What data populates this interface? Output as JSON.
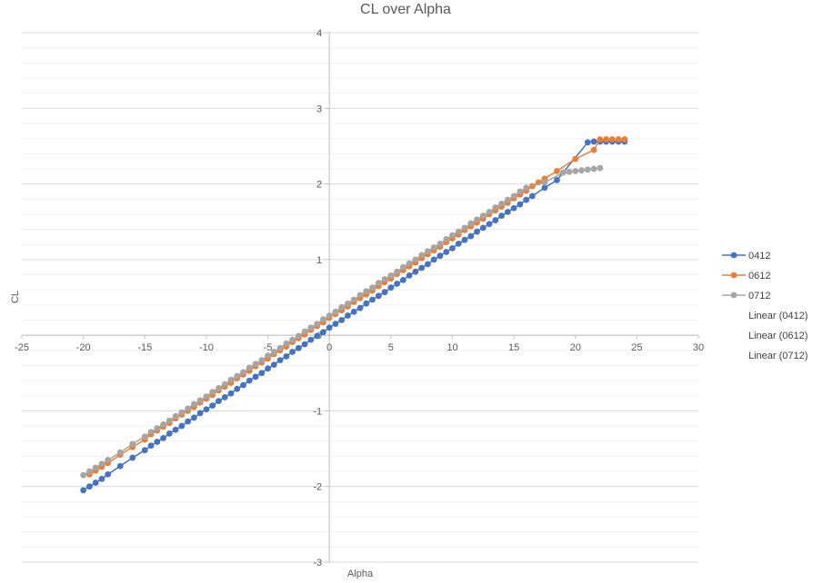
{
  "chart_data": {
    "type": "scatter",
    "title": "CL over Alpha",
    "xlabel": "Alpha",
    "ylabel": "CL",
    "xlim": [
      -25,
      30
    ],
    "ylim": [
      -3,
      4
    ],
    "x_major_step": 5,
    "y_major_step": 1,
    "y_minor_step": 0.2,
    "x_ticks": [
      "-25",
      "-20",
      "-15",
      "-10",
      "-5",
      "0",
      "5",
      "10",
      "15",
      "20",
      "25",
      "30"
    ],
    "y_ticks": [
      "-3",
      "-2",
      "-1",
      "0",
      "1",
      "2",
      "3",
      "4"
    ],
    "grid": true,
    "legend_position": "right",
    "legend": [
      "0412",
      "0612",
      "0712",
      "Linear (0412)",
      "Linear (0612)",
      "Linear (0712)"
    ],
    "series": [
      {
        "name": "0412",
        "color": "#4472C4",
        "x": [
          -20.0,
          -19.5,
          -19.0,
          -18.5,
          -18.0,
          -17.0,
          -16.0,
          -15.0,
          -14.5,
          -14.0,
          -13.5,
          -13.0,
          -12.5,
          -12.0,
          -11.5,
          -11.0,
          -10.5,
          -10.0,
          -9.5,
          -9.0,
          -8.5,
          -8.0,
          -7.5,
          -7.0,
          -6.5,
          -6.0,
          -5.5,
          -5.0,
          -4.5,
          -4.0,
          -3.5,
          -3.0,
          -2.5,
          -2.0,
          -1.5,
          -1.0,
          -0.5,
          0.0,
          0.5,
          1.0,
          1.5,
          2.0,
          2.5,
          3.0,
          3.5,
          4.0,
          4.5,
          5.0,
          5.5,
          6.0,
          6.5,
          7.0,
          7.5,
          8.0,
          8.5,
          9.0,
          9.5,
          10.0,
          10.5,
          11.0,
          11.5,
          12.0,
          12.5,
          13.0,
          13.5,
          14.0,
          14.5,
          15.0,
          15.5,
          16.0,
          16.5,
          17.5,
          18.5,
          21.0,
          21.5,
          22.0,
          22.5,
          23.0,
          23.5,
          24.0
        ],
        "y": [
          -2.05,
          -2.0,
          -1.95,
          -1.9,
          -1.84,
          -1.73,
          -1.62,
          -1.52,
          -1.46,
          -1.41,
          -1.36,
          -1.3,
          -1.25,
          -1.2,
          -1.14,
          -1.09,
          -1.03,
          -0.98,
          -0.93,
          -0.87,
          -0.82,
          -0.77,
          -0.71,
          -0.66,
          -0.6,
          -0.55,
          -0.5,
          -0.44,
          -0.39,
          -0.33,
          -0.28,
          -0.22,
          -0.17,
          -0.12,
          -0.06,
          -0.01,
          0.04,
          0.1,
          0.15,
          0.2,
          0.26,
          0.31,
          0.36,
          0.42,
          0.47,
          0.52,
          0.57,
          0.63,
          0.68,
          0.73,
          0.79,
          0.84,
          0.89,
          0.94,
          1.0,
          1.05,
          1.1,
          1.15,
          1.21,
          1.26,
          1.31,
          1.37,
          1.42,
          1.47,
          1.52,
          1.58,
          1.63,
          1.68,
          1.73,
          1.79,
          1.84,
          1.95,
          2.05,
          2.55,
          2.56,
          2.56,
          2.56,
          2.56,
          2.56,
          2.56
        ]
      },
      {
        "name": "0612",
        "color": "#ED7D31",
        "x": [
          -19.5,
          -19.0,
          -18.5,
          -18.0,
          -17.0,
          -16.0,
          -15.0,
          -14.5,
          -14.0,
          -13.5,
          -13.0,
          -12.5,
          -12.0,
          -11.5,
          -11.0,
          -10.5,
          -10.0,
          -9.5,
          -9.0,
          -8.5,
          -8.0,
          -7.5,
          -7.0,
          -6.5,
          -6.0,
          -5.5,
          -5.0,
          -4.5,
          -4.0,
          -3.5,
          -3.0,
          -2.5,
          -2.0,
          -1.5,
          -1.0,
          -0.5,
          0.0,
          0.5,
          1.0,
          1.5,
          2.0,
          2.5,
          3.0,
          3.5,
          4.0,
          4.5,
          5.0,
          5.5,
          6.0,
          6.5,
          7.0,
          7.5,
          8.0,
          8.5,
          9.0,
          9.5,
          10.0,
          10.5,
          11.0,
          11.5,
          12.0,
          12.5,
          13.0,
          13.5,
          14.0,
          14.5,
          15.0,
          15.5,
          16.0,
          16.5,
          17.0,
          17.5,
          18.5,
          20.0,
          21.5,
          22.0,
          22.5,
          23.0,
          23.5,
          24.0
        ],
        "y": [
          -1.84,
          -1.79,
          -1.74,
          -1.69,
          -1.58,
          -1.48,
          -1.38,
          -1.31,
          -1.26,
          -1.21,
          -1.16,
          -1.1,
          -1.05,
          -1.0,
          -0.95,
          -0.89,
          -0.84,
          -0.79,
          -0.73,
          -0.68,
          -0.63,
          -0.57,
          -0.52,
          -0.47,
          -0.41,
          -0.36,
          -0.31,
          -0.25,
          -0.2,
          -0.15,
          -0.09,
          -0.04,
          0.01,
          0.07,
          0.12,
          0.17,
          0.23,
          0.28,
          0.33,
          0.38,
          0.44,
          0.49,
          0.54,
          0.59,
          0.65,
          0.7,
          0.75,
          0.81,
          0.86,
          0.91,
          0.96,
          1.02,
          1.07,
          1.12,
          1.17,
          1.23,
          1.28,
          1.33,
          1.39,
          1.44,
          1.49,
          1.54,
          1.6,
          1.65,
          1.7,
          1.75,
          1.81,
          1.86,
          1.91,
          1.97,
          2.02,
          2.07,
          2.17,
          2.33,
          2.45,
          2.59,
          2.59,
          2.59,
          2.59,
          2.59
        ]
      },
      {
        "name": "0712",
        "color": "#A5A5A5",
        "x": [
          -20.0,
          -19.5,
          -19.0,
          -18.5,
          -18.0,
          -17.0,
          -16.0,
          -15.0,
          -14.5,
          -14.0,
          -13.5,
          -13.0,
          -12.5,
          -12.0,
          -11.5,
          -11.0,
          -10.5,
          -10.0,
          -9.5,
          -9.0,
          -8.5,
          -8.0,
          -7.5,
          -7.0,
          -6.5,
          -6.0,
          -5.5,
          -5.0,
          -4.5,
          -4.0,
          -3.5,
          -3.0,
          -2.5,
          -2.0,
          -1.5,
          -1.0,
          -0.5,
          0.0,
          0.5,
          1.0,
          1.5,
          2.0,
          2.5,
          3.0,
          3.5,
          4.0,
          4.5,
          5.0,
          5.5,
          6.0,
          6.5,
          7.0,
          7.5,
          8.0,
          8.5,
          9.0,
          9.5,
          10.0,
          10.5,
          11.0,
          11.5,
          12.0,
          12.5,
          13.0,
          13.5,
          14.0,
          14.5,
          15.0,
          15.5,
          16.0,
          17.5,
          19.0,
          19.5,
          20.0,
          20.5,
          21.0,
          21.5,
          22.0
        ],
        "y": [
          -1.85,
          -1.8,
          -1.75,
          -1.7,
          -1.65,
          -1.55,
          -1.44,
          -1.34,
          -1.28,
          -1.23,
          -1.18,
          -1.13,
          -1.07,
          -1.02,
          -0.97,
          -0.91,
          -0.86,
          -0.81,
          -0.75,
          -0.7,
          -0.65,
          -0.59,
          -0.54,
          -0.49,
          -0.43,
          -0.38,
          -0.33,
          -0.27,
          -0.22,
          -0.17,
          -0.11,
          -0.06,
          -0.01,
          0.05,
          0.1,
          0.15,
          0.21,
          0.26,
          0.31,
          0.37,
          0.42,
          0.47,
          0.53,
          0.58,
          0.63,
          0.69,
          0.74,
          0.79,
          0.84,
          0.9,
          0.95,
          1.0,
          1.06,
          1.11,
          1.16,
          1.21,
          1.27,
          1.32,
          1.37,
          1.42,
          1.48,
          1.53,
          1.58,
          1.63,
          1.69,
          1.74,
          1.79,
          1.84,
          1.9,
          1.95,
          2.02,
          2.15,
          2.16,
          2.17,
          2.18,
          2.19,
          2.2,
          2.21
        ]
      }
    ]
  }
}
